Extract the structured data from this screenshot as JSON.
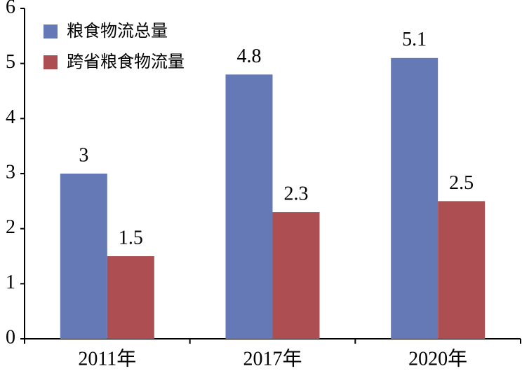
{
  "chart_data": {
    "type": "bar",
    "categories": [
      "2011年",
      "2017年",
      "2020年"
    ],
    "series": [
      {
        "name": "粮食物流总量",
        "values": [
          3,
          4.8,
          5.1
        ],
        "data_labels": [
          "3",
          "4.8",
          "5.1"
        ],
        "color": "#6579b6"
      },
      {
        "name": "跨省粮食物流量",
        "values": [
          1.5,
          2.3,
          2.5
        ],
        "data_labels": [
          "1.5",
          "2.3",
          "2.5"
        ],
        "color": "#ad4e52"
      }
    ],
    "ylim": [
      0,
      6
    ],
    "yticks": [
      0,
      1,
      2,
      3,
      4,
      5,
      6
    ],
    "ytick_labels": [
      "0",
      "1",
      "2",
      "3",
      "4",
      "5",
      "6"
    ],
    "grid": false,
    "legend_position": "top-left"
  }
}
